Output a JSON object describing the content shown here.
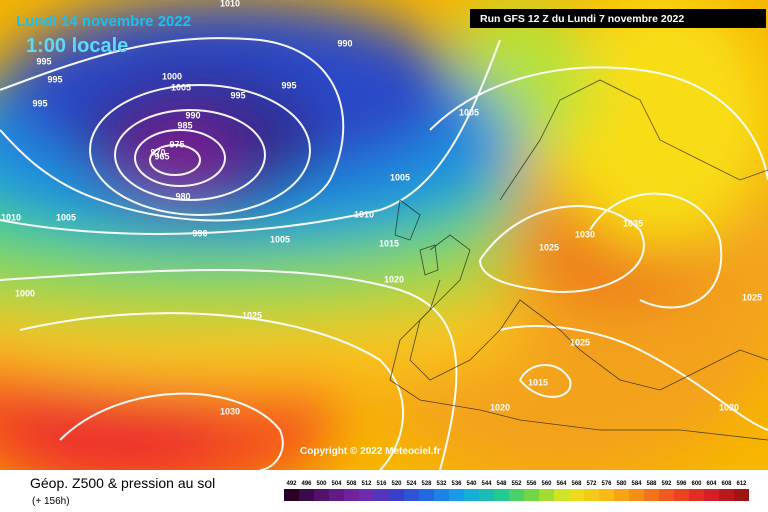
{
  "header": {
    "date": "Lundi 14 novembre 2022",
    "time": "1:00 locale",
    "run": "Run GFS 12 Z du Lundi 7 novembre 2022"
  },
  "copyright": "Copyright © 2022 Meteociel.fr",
  "footer": {
    "title": "Géop. Z500 & pression au sol",
    "lead": "(+ 156h)"
  },
  "legend": {
    "labels": [
      492,
      496,
      500,
      504,
      508,
      512,
      516,
      520,
      524,
      528,
      532,
      536,
      540,
      544,
      548,
      552,
      556,
      560,
      564,
      568,
      572,
      576,
      580,
      584,
      588,
      592,
      596,
      600,
      604,
      608,
      612
    ]
  },
  "isobar_labels": [
    "1010",
    "995",
    "995",
    "995",
    "990",
    "1000",
    "1005",
    "995",
    "995",
    "990",
    "985",
    "975",
    "970",
    "965",
    "980",
    "990",
    "1005",
    "1010",
    "1005",
    "1010",
    "1005",
    "1005",
    "1015",
    "1020",
    "1000",
    "1025",
    "1025",
    "1030",
    "1035",
    "1025",
    "1025",
    "1015",
    "1020",
    "1020",
    "1030"
  ]
}
